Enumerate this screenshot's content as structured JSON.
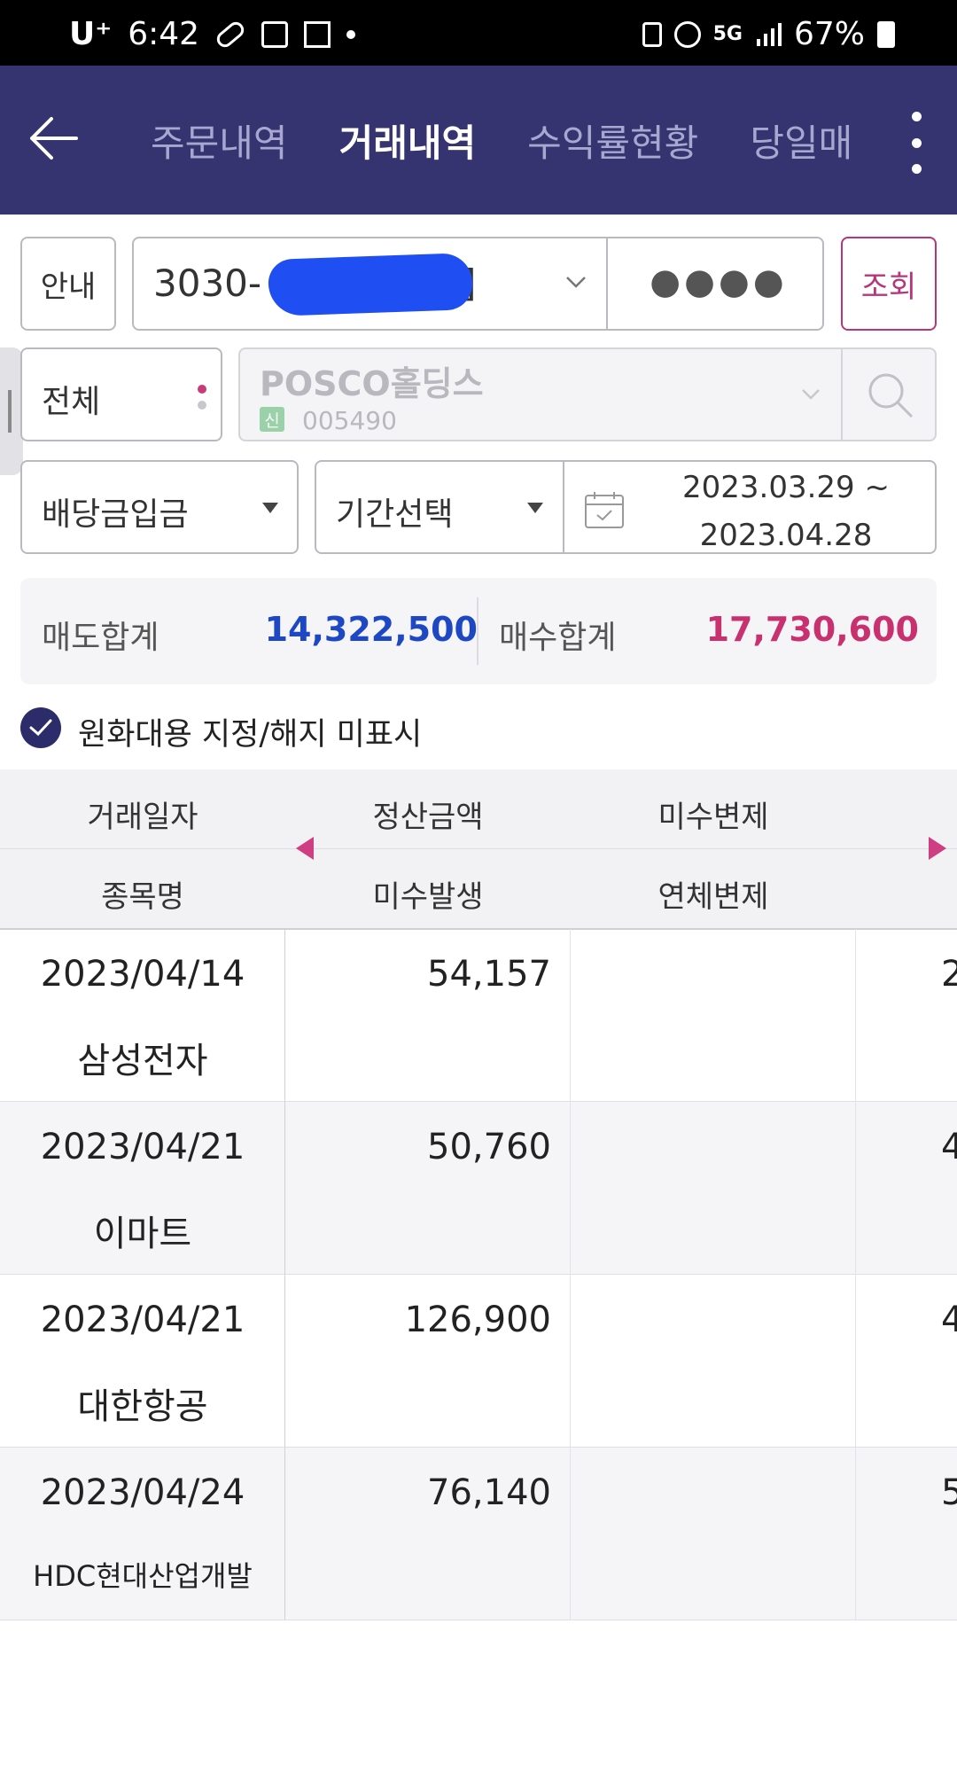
{
  "status_bar": {
    "carrier": "U⁺",
    "time": "6:42",
    "battery": "67%",
    "network": "5G"
  },
  "header": {
    "tabs": [
      {
        "label": "주문내역",
        "active": false
      },
      {
        "label": "거래내역",
        "active": true
      },
      {
        "label": "수익률현황",
        "active": false
      },
      {
        "label": "당일매",
        "active": false
      }
    ]
  },
  "controls": {
    "guide_label": "안내",
    "account_prefix": "3030-",
    "account_suffix": "]",
    "password_mask": "●●●●",
    "search_label": "조회",
    "scope_label": "전체",
    "stock_name": "POSCO홀딩스",
    "stock_tag": "신",
    "stock_code": "005490",
    "type_label": "배당금입금",
    "period_label": "기간선택",
    "date_from": "2023.03.29 ~",
    "date_to": "2023.04.28"
  },
  "totals": {
    "sell_label": "매도합계",
    "sell_value": "14,322,500",
    "buy_label": "매수합계",
    "buy_value": "17,730,600"
  },
  "checkbox": {
    "label": "원화대용 지정/해지 미표시",
    "checked": true
  },
  "table": {
    "header_row1": [
      "거래일자",
      "정산금액",
      "미수변제"
    ],
    "header_row2": [
      "종목명",
      "미수발생",
      "연체변제"
    ],
    "rows": [
      {
        "date": "2023/04/14",
        "stock": "삼성전자",
        "amount": "54,157",
        "cut": "2"
      },
      {
        "date": "2023/04/21",
        "stock": "이마트",
        "amount": "50,760",
        "cut": "4"
      },
      {
        "date": "2023/04/21",
        "stock": "대한항공",
        "amount": "126,900",
        "cut": "4"
      },
      {
        "date": "2023/04/24",
        "stock": "HDC현대산업개발",
        "amount": "76,140",
        "cut": "5"
      }
    ]
  },
  "colors": {
    "header_bg": "#353470",
    "sell": "#1e47c4",
    "buy": "#c9306f",
    "accent": "#b5367a"
  }
}
